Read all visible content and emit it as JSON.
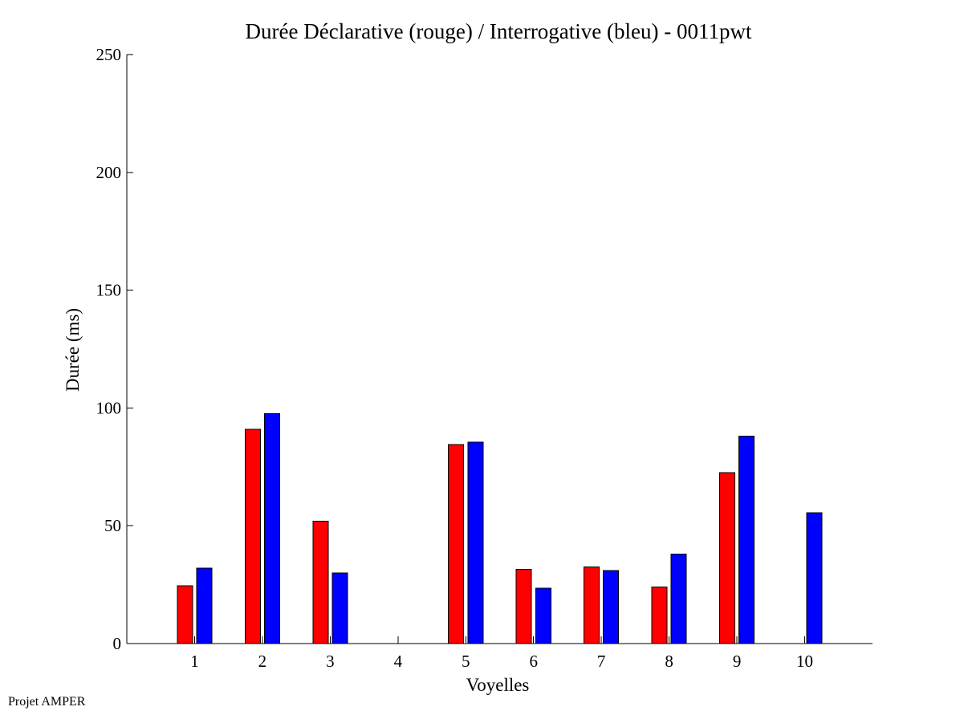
{
  "chart_data": {
    "type": "bar",
    "title": "Durée Déclarative (rouge) / Interrogative (bleu) - 0011pwt",
    "xlabel": "Voyelles",
    "ylabel": "Durée (ms)",
    "ylim": [
      0,
      250
    ],
    "yticks": [
      0,
      50,
      100,
      150,
      200,
      250
    ],
    "xlim": [
      0,
      11
    ],
    "categories": [
      "1",
      "2",
      "3",
      "4",
      "5",
      "6",
      "7",
      "8",
      "9",
      "10"
    ],
    "series": [
      {
        "values": [
          24.5,
          91,
          52,
          0,
          84.5,
          31.5,
          32.5,
          24,
          72.5,
          0
        ],
        "color": "#ff0000"
      },
      {
        "values": [
          32,
          97.5,
          30,
          0,
          85.5,
          23.5,
          31,
          38,
          88,
          55.5
        ],
        "color": "#0000ff"
      }
    ],
    "grid": false,
    "legend": "none"
  },
  "footer": {
    "text": "Projet AMPER"
  }
}
